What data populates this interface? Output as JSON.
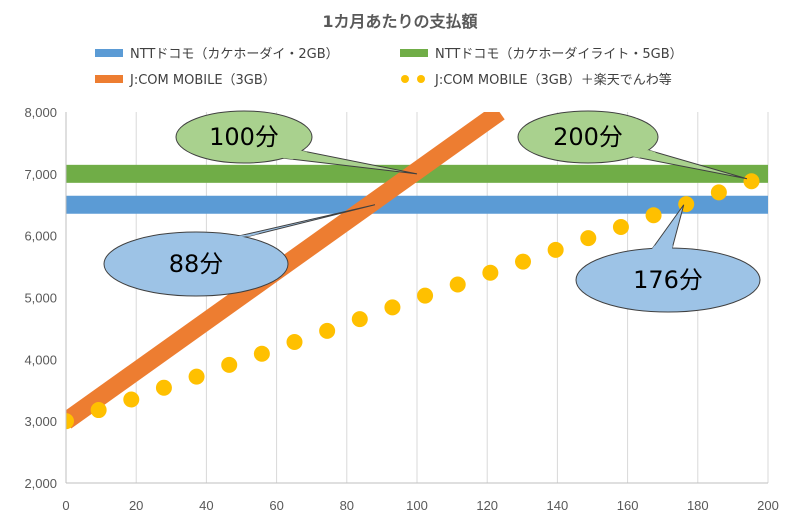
{
  "chart_data": {
    "type": "line",
    "title": "1カ月あたりの支払額",
    "xlabel": "",
    "ylabel": "",
    "xlim": [
      0,
      200
    ],
    "ylim": [
      2000,
      8000
    ],
    "x_ticks": [
      0,
      20,
      40,
      60,
      80,
      100,
      120,
      140,
      160,
      180,
      200
    ],
    "y_ticks": [
      2000,
      3000,
      4000,
      5000,
      6000,
      7000,
      8000
    ],
    "x_tick_labels": [
      "0",
      "20",
      "40",
      "60",
      "80",
      "100",
      "120",
      "140",
      "160",
      "180",
      "200"
    ],
    "y_tick_labels": [
      "2,000",
      "3,000",
      "4,000",
      "5,000",
      "6,000",
      "7,000",
      "8,000"
    ],
    "grid": "vertical",
    "legend_position": "top",
    "series": [
      {
        "name": "NTTドコモ（カケホーダイ・2GB）",
        "style": "band",
        "color": "#5B9BD5",
        "x": [
          0,
          200
        ],
        "y": [
          6500,
          6500
        ]
      },
      {
        "name": "NTTドコモ（カケホーダイライト・5GB）",
        "style": "band",
        "color": "#70AD47",
        "x": [
          0,
          200
        ],
        "y": [
          7000,
          7000
        ]
      },
      {
        "name": "J:COM MOBILE（3GB）",
        "style": "thick-line",
        "color": "#ED7D31",
        "x": [
          0,
          123.5
        ],
        "y": [
          3000,
          8000
        ]
      },
      {
        "name": "J:COM MOBILE（3GB）＋楽天でんわ等",
        "style": "dots",
        "color": "#FFC000",
        "x": [
          0,
          9.3,
          18.6,
          27.9,
          37.2,
          46.5,
          55.8,
          65.1,
          74.4,
          83.7,
          93,
          102.3,
          111.6,
          120.9,
          130.2,
          139.5,
          148.8,
          158.1,
          167.4,
          176.7,
          186,
          195.3
        ],
        "y": [
          3000,
          3180,
          3350,
          3540,
          3720,
          3910,
          4090,
          4280,
          4460,
          4650,
          4840,
          5030,
          5210,
          5400,
          5580,
          5770,
          5960,
          6140,
          6330,
          6510,
          6700,
          6880
        ]
      }
    ],
    "annotations": [
      {
        "label": "100分",
        "x": 100,
        "y": 7000,
        "color": "#A9D18E"
      },
      {
        "label": "200分",
        "x": 194,
        "y": 6920,
        "color": "#A9D18E"
      },
      {
        "label": "88分",
        "x": 88,
        "y": 6500,
        "color": "#9DC3E6"
      },
      {
        "label": "176分",
        "x": 176,
        "y": 6500,
        "color": "#9DC3E6"
      }
    ]
  }
}
